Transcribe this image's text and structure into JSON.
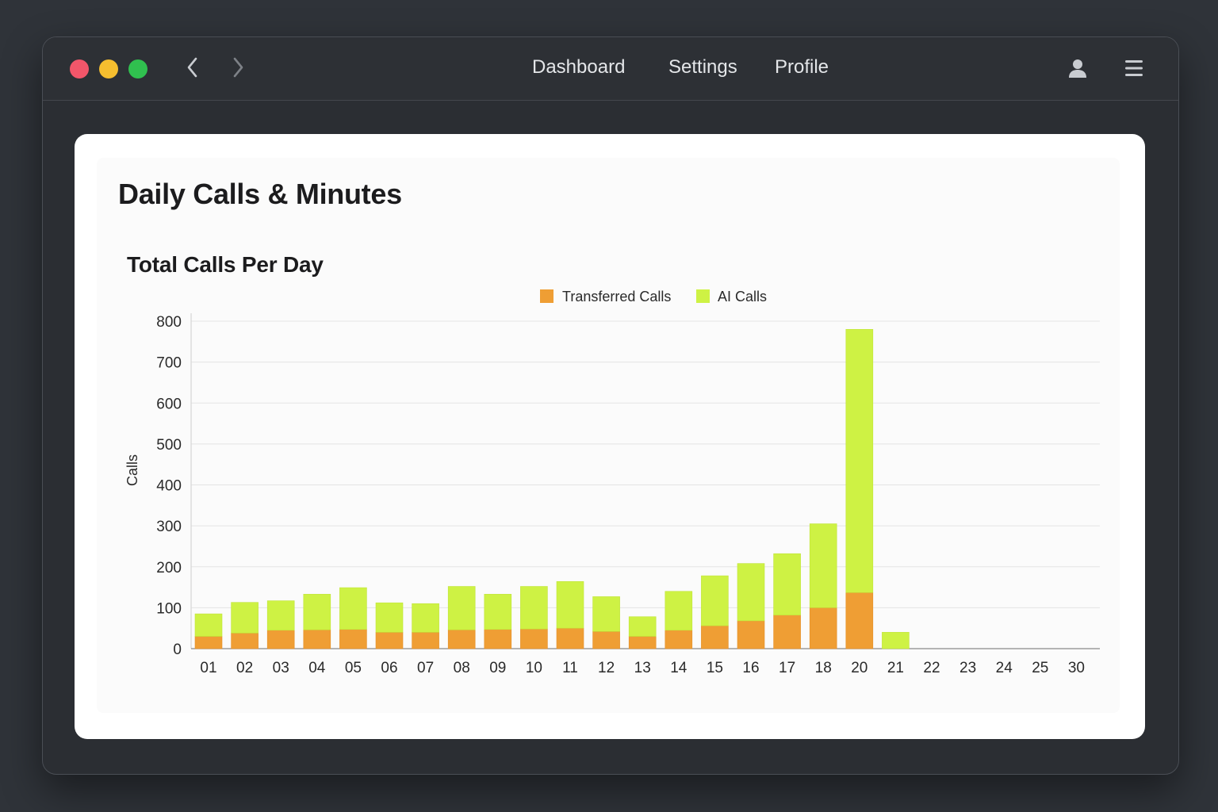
{
  "nav": {
    "links": [
      "Dashboard",
      "Settings",
      "Profile"
    ]
  },
  "icons": {
    "back": "chevron-left-icon",
    "forward": "chevron-right-icon",
    "user": "user-icon",
    "menu": "hamburger-menu-icon"
  },
  "colors": {
    "close": "#f2566a",
    "minimize": "#f5be2f",
    "maximize": "#30c04f",
    "transferred": "#ef9e34",
    "ai": "#cef244"
  },
  "card": {
    "title": "Daily Calls & Minutes"
  },
  "chart_data": {
    "type": "bar",
    "stacked": true,
    "title": "Total Calls Per Day",
    "xlabel": "",
    "ylabel": "Calls",
    "ylim": [
      0,
      800
    ],
    "yticks": [
      0,
      100,
      200,
      300,
      400,
      500,
      600,
      700,
      800
    ],
    "grid": true,
    "legend": "top-center",
    "categories": [
      "01",
      "02",
      "03",
      "04",
      "05",
      "06",
      "07",
      "08",
      "09",
      "10",
      "11",
      "12",
      "13",
      "14",
      "15",
      "16",
      "17",
      "18",
      "20",
      "21",
      "22",
      "23",
      "24",
      "25",
      "30"
    ],
    "series": [
      {
        "name": "Transferred Calls",
        "color": "#ef9e34",
        "values": [
          30,
          38,
          45,
          46,
          47,
          40,
          40,
          46,
          47,
          48,
          50,
          42,
          30,
          45,
          56,
          68,
          82,
          100,
          137,
          0,
          0,
          0,
          0,
          0,
          0
        ]
      },
      {
        "name": "AI Calls",
        "color": "#cef244",
        "values": [
          55,
          75,
          72,
          87,
          102,
          72,
          70,
          106,
          86,
          104,
          114,
          85,
          48,
          95,
          122,
          140,
          150,
          205,
          643,
          40,
          0,
          0,
          0,
          0,
          0
        ]
      }
    ]
  }
}
